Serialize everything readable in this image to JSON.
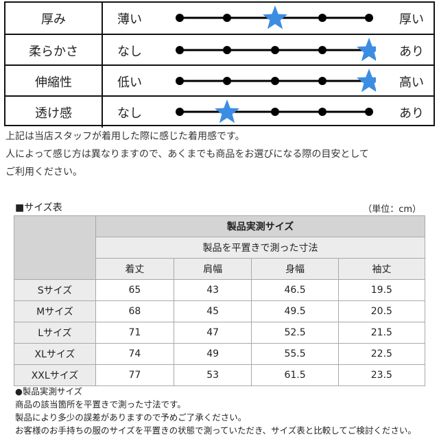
{
  "feel": [
    {
      "label": "厚み",
      "left": "薄い",
      "right": "厚い",
      "level": 3
    },
    {
      "label": "柔らかさ",
      "left": "なし",
      "right": "あり",
      "level": 5
    },
    {
      "label": "伸縮性",
      "left": "低い",
      "right": "高い",
      "level": 5
    },
    {
      "label": "透け感",
      "left": "なし",
      "right": "あり",
      "level": 2
    }
  ],
  "colors": {
    "star": "#3b8de2",
    "line": "#000000"
  },
  "icons": {
    "marker": "star-icon"
  },
  "notes": [
    "上記は当店スタッフが着用した際に感じた着用感です。",
    "人によって感じ方は異なりますので、あくまでも商品をお選びになる際の目安として",
    "ご利用ください。"
  ],
  "size_table": {
    "header": "■サイズ表",
    "unit": "（単位：cm）",
    "title": "製品実測サイズ",
    "subtitle": "製品を平置きで測った寸法",
    "columns": [
      "着丈",
      "肩幅",
      "身幅",
      "袖丈"
    ],
    "rows": [
      {
        "size": "Sサイズ",
        "values": [
          "65",
          "43",
          "46.5",
          "19.5"
        ]
      },
      {
        "size": "Mサイズ",
        "values": [
          "68",
          "45",
          "49.5",
          "20.5"
        ]
      },
      {
        "size": "Lサイズ",
        "values": [
          "71",
          "47",
          "52.5",
          "21.5"
        ]
      },
      {
        "size": "XLサイズ",
        "values": [
          "74",
          "49",
          "55.5",
          "22.5"
        ]
      },
      {
        "size": "XXLサイズ",
        "values": [
          "77",
          "53",
          "61.5",
          "23.5"
        ]
      }
    ]
  },
  "footnotes": [
    "●製品実測サイズ",
    "商品の該当箇所を平置きで測った寸法です。",
    "製品により多少の誤差がありますので予めご了承ください。",
    "お客様のお手持ちの服のサイズを平置きの状態で測っていただき、サイズ表と比較してご検討ください。"
  ]
}
